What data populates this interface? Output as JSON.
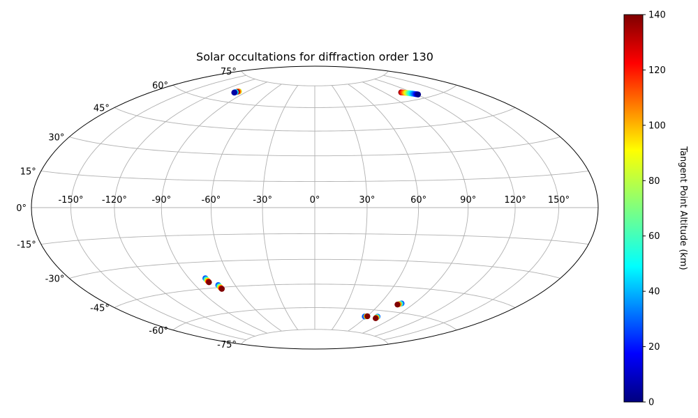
{
  "chart_data": {
    "type": "scatter",
    "projection": "hammer",
    "title": "Solar occultations for diffraction order 130",
    "colorbar": {
      "label": "Tangent Point Altitude (km)",
      "colormap": "jet",
      "range": [
        0,
        140
      ],
      "ticks": [
        "0",
        "20",
        "40",
        "60",
        "80",
        "100",
        "120",
        "140"
      ],
      "tick_values": [
        0,
        20,
        40,
        60,
        80,
        100,
        120,
        140
      ]
    },
    "lon_ticks": {
      "values": [
        -150,
        -120,
        -90,
        -60,
        -30,
        0,
        30,
        60,
        90,
        120,
        150
      ],
      "labels": [
        "-150°",
        "-120°",
        "-90°",
        "-60°",
        "-30°",
        "0°",
        "30°",
        "60°",
        "90°",
        "120°",
        "150°"
      ]
    },
    "lat_ticks": {
      "values": [
        75,
        60,
        45,
        30,
        15,
        0,
        -15,
        -30,
        -45,
        -60,
        -75
      ],
      "labels": [
        "75°",
        "60°",
        "45°",
        "30°",
        "15°",
        "0°",
        "-15°",
        "-30°",
        "-45°",
        "-60°",
        "-75°"
      ]
    },
    "grid": true,
    "points": [
      {
        "lon": -99.5,
        "lat": 66.9,
        "alt": 80
      },
      {
        "lon": -99.9,
        "lat": 66.8,
        "alt": 100
      },
      {
        "lon": -100.5,
        "lat": 66.6,
        "alt": 120
      },
      {
        "lon": -101.0,
        "lat": 66.4,
        "alt": 140
      },
      {
        "lon": -101.5,
        "lat": 66.2,
        "alt": 60
      },
      {
        "lon": -101.8,
        "lat": 66.0,
        "alt": 40
      },
      {
        "lon": -102.0,
        "lat": 65.9,
        "alt": 20
      },
      {
        "lon": -102.1,
        "lat": 65.8,
        "alt": 5
      },
      {
        "lon": 108.8,
        "lat": 65.3,
        "alt": 135
      },
      {
        "lon": 109.8,
        "lat": 65.1,
        "alt": 120
      },
      {
        "lon": 110.8,
        "lat": 64.9,
        "alt": 110
      },
      {
        "lon": 111.8,
        "lat": 64.7,
        "alt": 100
      },
      {
        "lon": 112.8,
        "lat": 64.5,
        "alt": 90
      },
      {
        "lon": 113.8,
        "lat": 64.3,
        "alt": 80
      },
      {
        "lon": 114.8,
        "lat": 64.1,
        "alt": 70
      },
      {
        "lon": 115.8,
        "lat": 63.9,
        "alt": 60
      },
      {
        "lon": 116.8,
        "lat": 63.6,
        "alt": 50
      },
      {
        "lon": 117.8,
        "lat": 63.4,
        "alt": 40
      },
      {
        "lon": 118.8,
        "lat": 63.1,
        "alt": 30
      },
      {
        "lon": 119.8,
        "lat": 62.8,
        "alt": 20
      },
      {
        "lon": 120.6,
        "lat": 62.6,
        "alt": 10
      },
      {
        "lon": 121.2,
        "lat": 62.4,
        "alt": 2
      },
      {
        "lon": -78.2,
        "lat": -39.2,
        "alt": 30
      },
      {
        "lon": -78.1,
        "lat": -39.9,
        "alt": 60
      },
      {
        "lon": -78.0,
        "lat": -40.6,
        "alt": 90
      },
      {
        "lon": -77.9,
        "lat": -41.2,
        "alt": 120
      },
      {
        "lon": -77.8,
        "lat": -41.6,
        "alt": 140
      },
      {
        "lon": -72.6,
        "lat": -43.6,
        "alt": 30
      },
      {
        "lon": -72.5,
        "lat": -44.3,
        "alt": 60
      },
      {
        "lon": -72.4,
        "lat": -44.9,
        "alt": 90
      },
      {
        "lon": -72.3,
        "lat": -45.5,
        "alt": 120
      },
      {
        "lon": -72.2,
        "lat": -45.9,
        "alt": 140
      },
      {
        "lon": 79.0,
        "lat": -54.6,
        "alt": 30
      },
      {
        "lon": 78.2,
        "lat": -54.9,
        "alt": 60
      },
      {
        "lon": 77.4,
        "lat": -55.2,
        "alt": 100
      },
      {
        "lon": 76.5,
        "lat": -55.5,
        "alt": 140
      },
      {
        "lon": 71.8,
        "lat": -63.9,
        "alt": 30
      },
      {
        "lon": 71.9,
        "lat": -64.2,
        "alt": 60
      },
      {
        "lon": 72.0,
        "lat": -64.6,
        "alt": 100
      },
      {
        "lon": 72.1,
        "lat": -65.0,
        "alt": 140
      },
      {
        "lon": 57.6,
        "lat": -64.6,
        "alt": 30
      },
      {
        "lon": 59.4,
        "lat": -64.4,
        "alt": 90
      },
      {
        "lon": 60.2,
        "lat": -64.3,
        "alt": 140
      }
    ]
  }
}
